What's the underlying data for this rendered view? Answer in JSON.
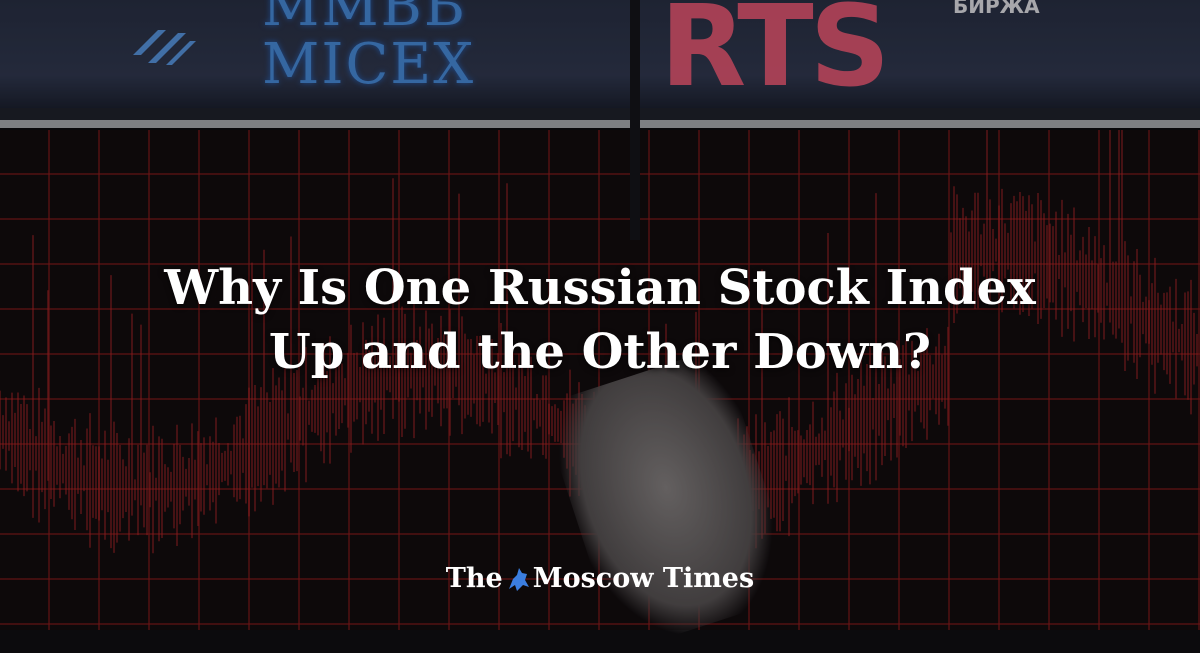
{
  "background": {
    "screen_logos": {
      "micex_cyrillic": "ММВБ",
      "micex_latin": "MICEX",
      "rts": "RTS",
      "rts_sub": "БИРЖА"
    },
    "colors": {
      "grid_red": "#c0282a",
      "micex_blue": "#4a8fe0",
      "rts_pink": "#ee5b78"
    }
  },
  "article": {
    "headline_line1": "Why Is One Russian Stock Index",
    "headline_line2": "Up and the Other Down?"
  },
  "brand": {
    "name_part1": "The",
    "name_part2": "Moscow Times",
    "icon": "st-george-emblem-icon",
    "icon_color": "#3b7ee0"
  }
}
